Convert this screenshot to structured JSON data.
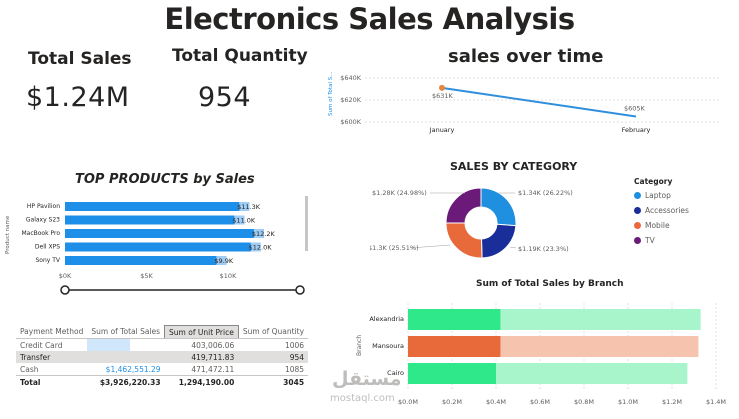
{
  "header": {
    "title": "Electronics Sales Analysis"
  },
  "kpis": [
    {
      "label": "Total Sales",
      "value": "$1.24M"
    },
    {
      "label": "Total Quantity",
      "value": "954"
    }
  ],
  "sales_over_time": {
    "title": "sales over time",
    "ylabel": "Sum of Total S...",
    "yticks": [
      "$640K",
      "$620K",
      "$600K"
    ],
    "xticks": [
      "January",
      "February"
    ],
    "data_labels": [
      "$631K",
      "$605K"
    ],
    "line_color": "#2f8fdc",
    "marker_color": "#e8853d"
  },
  "top_products": {
    "title": "TOP PRODUCTS by Sales",
    "ylabel": "Product name",
    "categories": [
      "HP Pavilion",
      "Galaxy S23",
      "MacBook Pro",
      "Dell XPS",
      "Sony TV"
    ],
    "labels": [
      "$11.3K",
      "$11.0K",
      "$12.2K",
      "$12.0K",
      "$9.9K"
    ],
    "xticks": [
      "$0K",
      "$5K",
      "$10K"
    ],
    "bar_color": "#1e8fe8",
    "highlight_color": "#9fcdf5"
  },
  "payment_table": {
    "columns": [
      "Payment Method",
      "Sum of Total Sales",
      "Sum of Unit Price",
      "Sum of Quantity"
    ],
    "rows": [
      {
        "method": "Credit Card",
        "sales": "",
        "unit_price": "403,006.06",
        "quantity": "1006"
      },
      {
        "method": "Transfer",
        "sales": "",
        "unit_price": "419,711.83",
        "quantity": "954"
      },
      {
        "method": "Cash",
        "sales": "$1,462,551.29",
        "unit_price": "471,472.11",
        "quantity": "1085"
      }
    ],
    "total": {
      "method": "Total",
      "sales": "$3,926,220.33",
      "unit_price": "1,294,190.00",
      "quantity": "3045"
    }
  },
  "sales_by_category": {
    "title": "SALES BY CATEGORY",
    "legend_title": "Category",
    "slices": [
      {
        "name": "Laptop",
        "label": "$1.34K (26.22%)",
        "percent": 26.22,
        "color": "#1f8fe0"
      },
      {
        "name": "Accessories",
        "label": "$1.19K (23.3%)",
        "percent": 23.3,
        "color": "#1a2e99"
      },
      {
        "name": "Mobile",
        "label": "$1.3K (25.51%)",
        "percent": 25.51,
        "color": "#e8693a"
      },
      {
        "name": "TV",
        "label": "$1.28K (24.98%)",
        "percent": 24.98,
        "color": "#6b1a7a"
      }
    ]
  },
  "sales_by_branch": {
    "title": "Sum of Total Sales by Branch",
    "ylabel": "Branch",
    "categories": [
      "Alexandria",
      "Mansoura",
      "Cairo"
    ],
    "highlight_values": [
      0.42,
      0.42,
      0.4
    ],
    "total_values": [
      1.33,
      1.32,
      1.27
    ],
    "colors": [
      "#2fe88a",
      "#e8693a",
      "#2fe88a"
    ],
    "light_colors": [
      "#a8f5cc",
      "#f5c3ae",
      "#a8f5cc"
    ],
    "xticks": [
      "$0.0M",
      "$0.2M",
      "$0.4M",
      "$0.6M",
      "$0.8M",
      "$1.0M",
      "$1.2M",
      "$1.4M"
    ]
  },
  "watermark": {
    "arabic": "مستقل",
    "latin": "mostaql.com"
  }
}
